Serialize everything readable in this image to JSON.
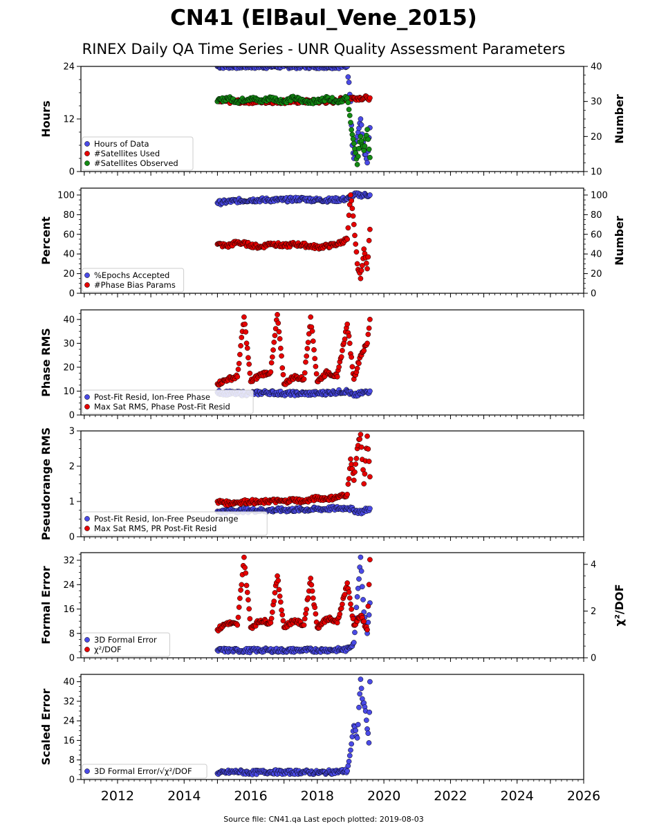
{
  "figure": {
    "title": "CN41 (ElBaul_Vene_2015)",
    "subtitle": "RINEX Daily QA Time Series - UNR Quality Assessment Parameters",
    "footer": "Source file: CN41.qa Last epoch plotted: 2019-08-03",
    "colors": {
      "blue": "#4a4ae6",
      "red": "#e60000",
      "green": "#138a13",
      "edge": "#000000"
    }
  },
  "chart_data": [
    {
      "type": "scatter",
      "panel": "hours",
      "ylabel": "Hours",
      "ylabel_right": "Number",
      "xlim": [
        2010.9,
        2026.0
      ],
      "ylim": [
        0,
        24
      ],
      "ylim_right": [
        10,
        40
      ],
      "yticks": [
        "0",
        "12",
        "24"
      ],
      "yticks_right": [
        "10",
        "20",
        "30",
        "40"
      ],
      "legend_loc": "lower-left",
      "series": [
        {
          "name": "Hours of Data",
          "color": "blue",
          "axis": "left",
          "x": [
            2015.0,
            2015.5,
            2016.0,
            2016.5,
            2017.0,
            2017.5,
            2018.0,
            2018.5,
            2018.9,
            2019.0,
            2019.05,
            2019.1,
            2019.2,
            2019.3,
            2019.4,
            2019.5,
            2019.58
          ],
          "y": [
            24,
            24,
            24,
            24,
            24,
            24,
            24,
            24,
            24,
            16,
            6,
            3,
            8,
            12,
            5,
            2,
            10
          ]
        },
        {
          "name": "#Satellites Used",
          "color": "red",
          "axis": "right",
          "x": [
            2015.0,
            2015.5,
            2016.0,
            2016.5,
            2017.0,
            2017.5,
            2018.0,
            2018.5,
            2018.9,
            2019.1,
            2019.3,
            2019.5,
            2019.58
          ],
          "y": [
            30,
            30,
            30,
            30,
            30,
            30,
            30,
            30,
            31,
            31,
            31,
            31,
            31
          ]
        },
        {
          "name": "#Satellites Observed",
          "color": "green",
          "axis": "right",
          "x": [
            2015.0,
            2015.3,
            2015.6,
            2016.0,
            2016.3,
            2016.6,
            2017.0,
            2017.3,
            2017.6,
            2018.0,
            2018.3,
            2018.6,
            2018.9,
            2019.0,
            2019.1,
            2019.2,
            2019.3,
            2019.4,
            2019.5,
            2019.58
          ],
          "y": [
            30,
            31,
            30,
            31,
            30,
            31,
            30,
            31,
            30,
            30,
            31,
            30,
            31,
            24,
            18,
            12,
            20,
            16,
            22,
            14
          ]
        }
      ]
    },
    {
      "type": "scatter",
      "panel": "percent",
      "ylabel": "Percent",
      "ylabel_right": "Number",
      "xlim": [
        2010.9,
        2026.0
      ],
      "ylim": [
        0,
        107
      ],
      "ylim_right": [
        0,
        107
      ],
      "yticks": [
        "0",
        "20",
        "40",
        "60",
        "80",
        "100"
      ],
      "yticks_right": [
        "0",
        "20",
        "40",
        "60",
        "80",
        "100"
      ],
      "legend_loc": "lower-left",
      "series": [
        {
          "name": "%Epochs Accepted",
          "color": "blue",
          "axis": "left",
          "x": [
            2015.0,
            2015.5,
            2016.0,
            2016.5,
            2017.0,
            2017.5,
            2018.0,
            2018.5,
            2018.9,
            2019.1,
            2019.3,
            2019.58
          ],
          "y": [
            92,
            94,
            95,
            95,
            95,
            96,
            95,
            95,
            96,
            100,
            100,
            100
          ]
        },
        {
          "name": "#Phase Bias Params",
          "color": "red",
          "axis": "right",
          "x": [
            2015.0,
            2015.3,
            2015.6,
            2016.0,
            2016.3,
            2016.6,
            2017.0,
            2017.3,
            2017.6,
            2018.0,
            2018.3,
            2018.6,
            2018.9,
            2019.0,
            2019.1,
            2019.2,
            2019.3,
            2019.4,
            2019.5,
            2019.58
          ],
          "y": [
            50,
            48,
            52,
            49,
            47,
            51,
            48,
            50,
            49,
            47,
            48,
            50,
            55,
            100,
            70,
            30,
            15,
            45,
            25,
            65
          ]
        }
      ]
    },
    {
      "type": "scatter",
      "panel": "phase_rms",
      "ylabel": "Phase RMS",
      "xlim": [
        2010.9,
        2026.0
      ],
      "ylim": [
        0,
        44
      ],
      "yticks": [
        "0",
        "10",
        "20",
        "30",
        "40"
      ],
      "legend_loc": "lower-left",
      "series": [
        {
          "name": "Post-Fit Resid, Ion-Free Phase",
          "color": "blue",
          "x": [
            2015.0,
            2015.5,
            2016.0,
            2016.5,
            2017.0,
            2017.5,
            2018.0,
            2018.5,
            2018.9,
            2019.1,
            2019.3,
            2019.58
          ],
          "y": [
            9.5,
            9,
            9,
            9.5,
            9,
            9,
            9,
            9.5,
            10,
            8,
            9,
            10
          ]
        },
        {
          "name": "Max Sat RMS, Phase Post-Fit Resid",
          "color": "red",
          "x": [
            2015.0,
            2015.3,
            2015.6,
            2015.8,
            2016.0,
            2016.3,
            2016.6,
            2016.8,
            2017.0,
            2017.3,
            2017.6,
            2017.8,
            2018.0,
            2018.3,
            2018.6,
            2018.9,
            2019.1,
            2019.3,
            2019.5,
            2019.58
          ],
          "y": [
            13,
            15,
            16,
            41,
            14,
            17,
            18,
            42,
            13,
            16,
            15,
            41,
            14,
            18,
            16,
            38,
            15,
            25,
            30,
            40
          ]
        }
      ]
    },
    {
      "type": "scatter",
      "panel": "pseudorange_rms",
      "ylabel": "Pseudorange RMS",
      "xlim": [
        2010.9,
        2026.0
      ],
      "ylim": [
        0,
        3
      ],
      "yticks": [
        "0",
        "1",
        "2",
        "3"
      ],
      "legend_loc": "lower-left",
      "series": [
        {
          "name": "Post-Fit Resid, Ion-Free Pseudorange",
          "color": "blue",
          "x": [
            2015.0,
            2015.5,
            2016.0,
            2016.5,
            2017.0,
            2017.5,
            2018.0,
            2018.5,
            2018.9,
            2019.1,
            2019.3,
            2019.58
          ],
          "y": [
            0.72,
            0.74,
            0.75,
            0.75,
            0.76,
            0.77,
            0.78,
            0.8,
            0.82,
            0.75,
            0.7,
            0.8
          ]
        },
        {
          "name": "Max Sat RMS, PR Post-Fit Resid",
          "color": "red",
          "x": [
            2015.0,
            2015.3,
            2015.6,
            2016.0,
            2016.3,
            2016.6,
            2017.0,
            2017.3,
            2017.6,
            2018.0,
            2018.3,
            2018.6,
            2018.9,
            2019.0,
            2019.1,
            2019.2,
            2019.3,
            2019.4,
            2019.5,
            2019.58
          ],
          "y": [
            1.0,
            0.95,
            0.98,
            1.0,
            0.97,
            1.02,
            1.0,
            1.05,
            1.0,
            1.1,
            1.08,
            1.12,
            1.2,
            2.2,
            1.6,
            2.5,
            2.9,
            1.5,
            2.85,
            1.7
          ]
        }
      ]
    },
    {
      "type": "scatter",
      "panel": "formal_error",
      "ylabel": "Formal Error",
      "ylabel_right": "χ²/DOF",
      "xlim": [
        2010.9,
        2026.0
      ],
      "ylim": [
        0,
        34.5
      ],
      "ylim_right": [
        0,
        4.5
      ],
      "yticks": [
        "0",
        "8",
        "16",
        "24",
        "32"
      ],
      "yticks_right": [
        "0",
        "2",
        "4"
      ],
      "legend_loc": "lower-left",
      "series": [
        {
          "name": "3D Formal Error",
          "color": "blue",
          "axis": "left",
          "x": [
            2015.0,
            2015.5,
            2016.0,
            2016.5,
            2017.0,
            2017.5,
            2018.0,
            2018.5,
            2018.9,
            2019.1,
            2019.2,
            2019.3,
            2019.4,
            2019.5,
            2019.58
          ],
          "y": [
            2.5,
            2.4,
            2.4,
            2.5,
            2.4,
            2.5,
            2.5,
            2.6,
            2.7,
            5,
            20,
            33,
            15,
            8,
            18
          ]
        },
        {
          "name": "χ²/DOF",
          "color": "red",
          "axis": "right",
          "x": [
            2015.0,
            2015.3,
            2015.6,
            2015.8,
            2016.0,
            2016.3,
            2016.6,
            2016.8,
            2017.0,
            2017.3,
            2017.6,
            2017.8,
            2018.0,
            2018.3,
            2018.6,
            2018.9,
            2019.1,
            2019.3,
            2019.5,
            2019.58
          ],
          "y": [
            1.2,
            1.5,
            1.4,
            4.3,
            1.3,
            1.6,
            1.5,
            3.5,
            1.3,
            1.6,
            1.4,
            3.4,
            1.3,
            1.7,
            1.5,
            3.2,
            1.4,
            1.8,
            1.2,
            4.2
          ]
        }
      ]
    },
    {
      "type": "scatter",
      "panel": "scaled_error",
      "ylabel": "Scaled Error",
      "xlim": [
        2010.9,
        2026.0
      ],
      "ylim": [
        0,
        43
      ],
      "yticks": [
        "0",
        "8",
        "16",
        "24",
        "32",
        "40"
      ],
      "xticks": [
        "2012",
        "2014",
        "2016",
        "2018",
        "2020",
        "2022",
        "2024",
        "2026"
      ],
      "legend_loc": "lower-left",
      "series": [
        {
          "name": "3D Formal Error/√χ²/DOF",
          "color": "blue",
          "x": [
            2015.0,
            2015.3,
            2015.6,
            2016.0,
            2016.3,
            2016.6,
            2017.0,
            2017.3,
            2017.6,
            2018.0,
            2018.3,
            2018.6,
            2018.9,
            2019.0,
            2019.1,
            2019.2,
            2019.3,
            2019.35,
            2019.45,
            2019.55,
            2019.58
          ],
          "y": [
            2.5,
            3,
            3.2,
            2.8,
            3,
            3.2,
            2.9,
            3,
            3.1,
            2.8,
            3,
            3.2,
            3.5,
            12,
            22,
            17,
            41,
            33,
            28,
            15,
            40
          ]
        }
      ]
    }
  ]
}
